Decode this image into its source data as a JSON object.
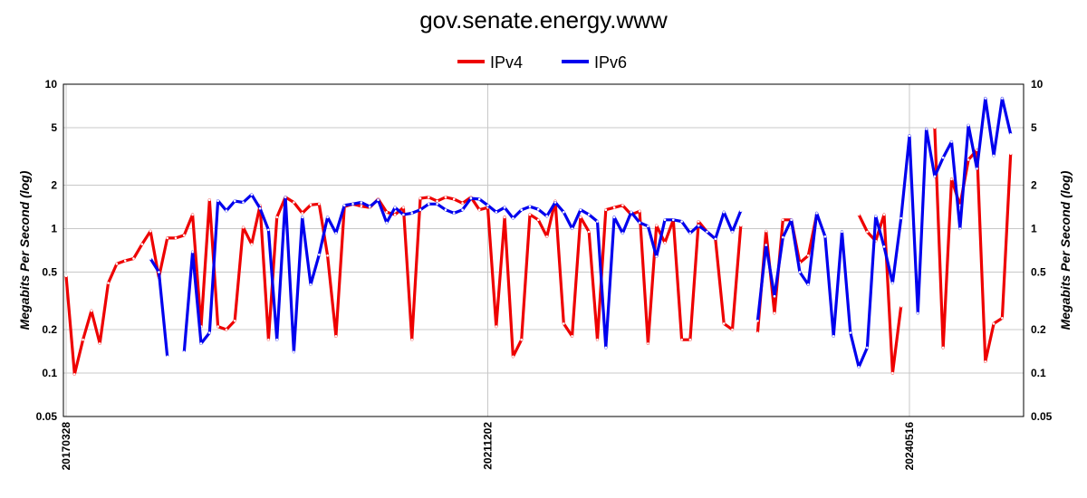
{
  "chart_data": {
    "type": "line",
    "title": "gov.senate.energy.www",
    "ylabel": "Megabits Per Second (log)",
    "xlabel": "",
    "yscale": "log",
    "ylim": [
      0.05,
      10
    ],
    "yticks": [
      0.05,
      0.1,
      0.2,
      0.5,
      1,
      2,
      5,
      10
    ],
    "ytick_labels": [
      "0.05",
      "0.1",
      "0.2",
      "0.5",
      "1",
      "2",
      "5",
      "10"
    ],
    "x_ticks": [
      {
        "label": "20170328",
        "index": 0
      },
      {
        "label": "20211202",
        "index": 50
      },
      {
        "label": "20240516",
        "index": 100
      }
    ],
    "x_count": 114,
    "grid": true,
    "legend_position": "top-center",
    "series": [
      {
        "name": "IPv4",
        "color": "#ee0000",
        "values": [
          0.47,
          0.098,
          0.17,
          0.27,
          0.16,
          0.42,
          0.57,
          0.6,
          0.62,
          0.78,
          0.96,
          0.46,
          0.86,
          0.86,
          0.9,
          1.25,
          0.21,
          1.58,
          0.21,
          0.2,
          0.23,
          1.02,
          0.78,
          1.45,
          0.17,
          1.2,
          1.65,
          1.52,
          1.28,
          1.46,
          1.48,
          0.65,
          0.18,
          1.42,
          1.48,
          1.43,
          1.4,
          1.6,
          1.3,
          1.25,
          1.4,
          0.17,
          1.62,
          1.65,
          1.55,
          1.65,
          1.6,
          1.5,
          1.65,
          1.35,
          1.4,
          0.21,
          1.2,
          0.13,
          0.17,
          1.25,
          1.15,
          0.88,
          1.55,
          0.22,
          0.18,
          1.2,
          0.95,
          0.17,
          1.35,
          1.4,
          1.45,
          1.25,
          1.32,
          0.16,
          1.05,
          0.8,
          1.15,
          0.17,
          0.17,
          1.12,
          0.95,
          0.85,
          0.22,
          0.2,
          1.05,
          null,
          0.19,
          0.96,
          0.26,
          1.15,
          1.15,
          0.58,
          0.65,
          1.25,
          null,
          null,
          null,
          null,
          1.25,
          0.95,
          0.82,
          1.25,
          0.1,
          0.29,
          null,
          null,
          null,
          5.0,
          0.15,
          2.2,
          1.45,
          3.0,
          3.5,
          0.12,
          0.22,
          0.24,
          3.3,
          null
        ],
        "note_index_count": 114
      },
      {
        "name": "IPv6",
        "color": "#0000ee",
        "values": [
          null,
          null,
          null,
          null,
          null,
          null,
          null,
          null,
          null,
          null,
          0.62,
          0.5,
          0.13,
          null,
          0.14,
          0.69,
          0.16,
          0.19,
          1.56,
          1.33,
          1.55,
          1.52,
          1.72,
          1.38,
          0.98,
          0.17,
          1.65,
          0.14,
          1.2,
          0.41,
          0.66,
          1.2,
          0.93,
          1.45,
          1.48,
          1.52,
          1.42,
          1.58,
          1.1,
          1.4,
          1.25,
          1.28,
          1.35,
          1.48,
          1.48,
          1.35,
          1.28,
          1.35,
          1.62,
          1.6,
          1.45,
          1.3,
          1.4,
          1.18,
          1.35,
          1.42,
          1.36,
          1.22,
          1.52,
          1.3,
          1.0,
          1.35,
          1.25,
          1.12,
          0.15,
          1.2,
          0.93,
          1.3,
          1.1,
          1.04,
          0.64,
          1.15,
          1.15,
          1.12,
          0.93,
          1.05,
          0.95,
          0.85,
          1.3,
          0.95,
          1.33,
          null,
          0.23,
          0.77,
          0.34,
          0.87,
          1.15,
          0.5,
          0.41,
          1.28,
          0.88,
          0.18,
          0.95,
          0.19,
          0.11,
          0.15,
          1.22,
          0.75,
          0.42,
          1.18,
          4.4,
          0.26,
          4.9,
          2.3,
          3.1,
          4.0,
          1.0,
          5.2,
          2.6,
          8.0,
          3.2,
          8.0,
          4.5,
          null
        ]
      }
    ]
  }
}
